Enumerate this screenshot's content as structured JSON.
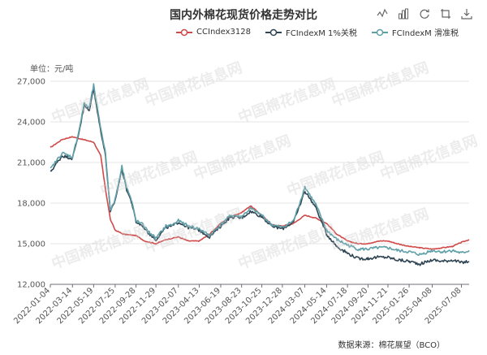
{
  "title": "国内外棉花现货价格走势对比",
  "unit_label": "单位：元/吨",
  "source": "数据来源：棉花展望（BCO）",
  "watermark": "中国棉花信息网",
  "toolbox": [
    "line-chart-icon",
    "bar-chart-icon",
    "restore-icon",
    "crop-icon",
    "download-icon"
  ],
  "chart_data": {
    "type": "line",
    "title": "国内外棉花现货价格走势对比",
    "ylabel": "单位：元/吨",
    "ylim": [
      12000,
      27000
    ],
    "yticks": [
      12000,
      15000,
      18000,
      21000,
      24000,
      27000
    ],
    "ytick_labels": [
      "12,000",
      "15,000",
      "18,000",
      "21,000",
      "24,000",
      "27,000"
    ],
    "xtick_labels": [
      "2022-01-04",
      "2022-03-14",
      "2022-05-19",
      "2022-07-25",
      "2022-09-28",
      "2022-11-29",
      "2023-02-07",
      "2023-04-13",
      "2023-06-19",
      "2023-08-23",
      "2023-10-25",
      "2023-12-28",
      "2024-03-07",
      "2024-05-14",
      "2024-07-18",
      "2024-09-20",
      "2024-11-21",
      "2025-01-26",
      "2025-04-08",
      "2025-07-08"
    ],
    "x_start": "2022-01-04",
    "x_end": "2025-08-01",
    "legend_position": "top-right",
    "grid": true,
    "series": [
      {
        "name": "CCIndex3128",
        "color": "#d14a4a",
        "points": [
          [
            "2022-01-04",
            22100
          ],
          [
            "2022-02-10",
            22700
          ],
          [
            "2022-03-14",
            22900
          ],
          [
            "2022-04-15",
            22700
          ],
          [
            "2022-05-19",
            22500
          ],
          [
            "2022-06-10",
            21500
          ],
          [
            "2022-06-25",
            19000
          ],
          [
            "2022-07-10",
            16800
          ],
          [
            "2022-07-25",
            16000
          ],
          [
            "2022-08-20",
            15700
          ],
          [
            "2022-09-28",
            15600
          ],
          [
            "2022-10-25",
            15200
          ],
          [
            "2022-11-29",
            15000
          ],
          [
            "2022-12-30",
            15300
          ],
          [
            "2023-02-07",
            15500
          ],
          [
            "2023-03-10",
            15200
          ],
          [
            "2023-04-13",
            15200
          ],
          [
            "2023-05-15",
            15700
          ],
          [
            "2023-06-19",
            16500
          ],
          [
            "2023-07-20",
            17000
          ],
          [
            "2023-08-23",
            17300
          ],
          [
            "2023-09-20",
            17800
          ],
          [
            "2023-10-25",
            17100
          ],
          [
            "2023-11-25",
            16400
          ],
          [
            "2023-12-28",
            16300
          ],
          [
            "2024-02-01",
            16500
          ],
          [
            "2024-03-07",
            17100
          ],
          [
            "2024-04-10",
            16900
          ],
          [
            "2024-05-14",
            16500
          ],
          [
            "2024-06-15",
            15700
          ],
          [
            "2024-07-18",
            15200
          ],
          [
            "2024-08-20",
            15000
          ],
          [
            "2024-09-20",
            15000
          ],
          [
            "2024-10-20",
            15200
          ],
          [
            "2024-11-21",
            15200
          ],
          [
            "2024-12-20",
            15000
          ],
          [
            "2025-01-26",
            14800
          ],
          [
            "2025-03-01",
            14700
          ],
          [
            "2025-04-08",
            14600
          ],
          [
            "2025-05-10",
            14700
          ],
          [
            "2025-06-10",
            14800
          ],
          [
            "2025-07-08",
            15100
          ],
          [
            "2025-08-01",
            15300
          ]
        ]
      },
      {
        "name": "FCIndexM 1%关税",
        "color": "#2f4554",
        "points": [
          [
            "2022-01-04",
            20300
          ],
          [
            "2022-02-10",
            21500
          ],
          [
            "2022-03-14",
            21300
          ],
          [
            "2022-04-01",
            23000
          ],
          [
            "2022-04-20",
            25200
          ],
          [
            "2022-05-05",
            24800
          ],
          [
            "2022-05-19",
            26500
          ],
          [
            "2022-06-05",
            24000
          ],
          [
            "2022-06-25",
            21500
          ],
          [
            "2022-07-10",
            17300
          ],
          [
            "2022-07-25",
            18200
          ],
          [
            "2022-08-15",
            20500
          ],
          [
            "2022-08-30",
            19000
          ],
          [
            "2022-09-15",
            18000
          ],
          [
            "2022-09-28",
            16600
          ],
          [
            "2022-10-20",
            16300
          ],
          [
            "2022-11-05",
            15800
          ],
          [
            "2022-11-29",
            15300
          ],
          [
            "2022-12-30",
            16200
          ],
          [
            "2023-01-20",
            16300
          ],
          [
            "2023-02-07",
            16600
          ],
          [
            "2023-03-10",
            16200
          ],
          [
            "2023-04-13",
            16000
          ],
          [
            "2023-05-15",
            15500
          ],
          [
            "2023-06-19",
            16300
          ],
          [
            "2023-07-20",
            17000
          ],
          [
            "2023-08-23",
            16900
          ],
          [
            "2023-09-20",
            17400
          ],
          [
            "2023-10-25",
            17000
          ],
          [
            "2023-11-25",
            16300
          ],
          [
            "2023-12-28",
            16100
          ],
          [
            "2024-02-01",
            16600
          ],
          [
            "2024-02-20",
            17800
          ],
          [
            "2024-03-07",
            18900
          ],
          [
            "2024-04-10",
            17700
          ],
          [
            "2024-05-14",
            15700
          ],
          [
            "2024-06-15",
            14800
          ],
          [
            "2024-07-18",
            14300
          ],
          [
            "2024-08-20",
            13900
          ],
          [
            "2024-09-20",
            13900
          ],
          [
            "2024-10-20",
            14000
          ],
          [
            "2024-11-21",
            14000
          ],
          [
            "2024-12-20",
            13800
          ],
          [
            "2025-01-26",
            13700
          ],
          [
            "2025-03-01",
            13500
          ],
          [
            "2025-04-08",
            13800
          ],
          [
            "2025-05-10",
            13700
          ],
          [
            "2025-06-10",
            13800
          ],
          [
            "2025-07-08",
            13600
          ],
          [
            "2025-08-01",
            13700
          ]
        ]
      },
      {
        "name": "FCIndexM 滑准税",
        "color": "#5fa0a8",
        "points": [
          [
            "2022-01-04",
            20500
          ],
          [
            "2022-02-10",
            21700
          ],
          [
            "2022-03-14",
            21400
          ],
          [
            "2022-04-01",
            23100
          ],
          [
            "2022-04-20",
            25400
          ],
          [
            "2022-05-05",
            25000
          ],
          [
            "2022-05-19",
            26700
          ],
          [
            "2022-06-05",
            24200
          ],
          [
            "2022-06-25",
            21700
          ],
          [
            "2022-07-10",
            17400
          ],
          [
            "2022-07-25",
            18300
          ],
          [
            "2022-08-15",
            20700
          ],
          [
            "2022-08-30",
            19200
          ],
          [
            "2022-09-15",
            18100
          ],
          [
            "2022-09-28",
            16700
          ],
          [
            "2022-10-20",
            16400
          ],
          [
            "2022-11-05",
            15900
          ],
          [
            "2022-11-29",
            15400
          ],
          [
            "2022-12-30",
            16300
          ],
          [
            "2023-01-20",
            16400
          ],
          [
            "2023-02-07",
            16700
          ],
          [
            "2023-03-10",
            16300
          ],
          [
            "2023-04-13",
            16100
          ],
          [
            "2023-05-15",
            15600
          ],
          [
            "2023-06-19",
            16400
          ],
          [
            "2023-07-20",
            17100
          ],
          [
            "2023-08-23",
            17000
          ],
          [
            "2023-09-20",
            17600
          ],
          [
            "2023-10-25",
            17100
          ],
          [
            "2023-11-25",
            16400
          ],
          [
            "2023-12-28",
            16200
          ],
          [
            "2024-02-01",
            16700
          ],
          [
            "2024-02-20",
            18000
          ],
          [
            "2024-03-07",
            19200
          ],
          [
            "2024-04-10",
            17900
          ],
          [
            "2024-05-14",
            16000
          ],
          [
            "2024-06-15",
            15300
          ],
          [
            "2024-07-18",
            14900
          ],
          [
            "2024-08-20",
            14600
          ],
          [
            "2024-09-20",
            14600
          ],
          [
            "2024-10-20",
            14700
          ],
          [
            "2024-11-21",
            14700
          ],
          [
            "2024-12-20",
            14500
          ],
          [
            "2025-01-26",
            14400
          ],
          [
            "2025-03-01",
            14200
          ],
          [
            "2025-04-08",
            14500
          ],
          [
            "2025-05-10",
            14400
          ],
          [
            "2025-06-10",
            14500
          ],
          [
            "2025-07-08",
            14300
          ],
          [
            "2025-08-01",
            14500
          ]
        ]
      }
    ]
  }
}
